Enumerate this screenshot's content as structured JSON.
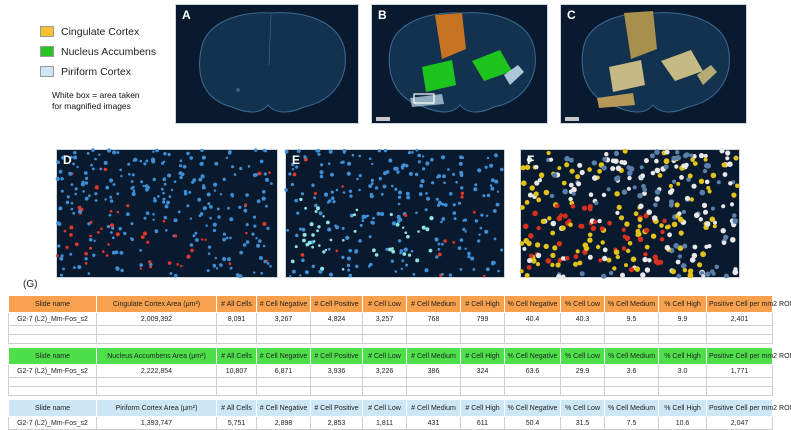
{
  "legend": {
    "items": [
      {
        "label": "Cingulate Cortex",
        "color": "#f5c12e"
      },
      {
        "label": "Nucleus Accumbens",
        "color": "#27c425"
      },
      {
        "label": "Piriform Cortex",
        "color": "#cfe6f5"
      }
    ],
    "note_line1": "White box = area taken",
    "note_line2": "for magnified images"
  },
  "panels": {
    "a": "A",
    "b": "B",
    "c": "C",
    "d": "D",
    "e": "E",
    "f": "F"
  },
  "section_g_label": "(G)",
  "tables": [
    {
      "header": [
        "Slide name",
        "Cingulate Cortex Area (μm²)",
        "# All Cells",
        "# Cell Negative",
        "# Cell Positive",
        "# Cell Low",
        "# Cell Medium",
        "# Cell High",
        "% Cell Negative",
        "% Cell Low",
        "% Cell Medium",
        "% Cell High",
        "Positive Cell per mm2 ROI"
      ],
      "row": [
        "G2-7 (L2)_Mm-Fos_s2",
        "2,009,392",
        "8,091",
        "3,267",
        "4,824",
        "3,257",
        "768",
        "799",
        "40.4",
        "40.3",
        "9.5",
        "9.9",
        "2,401"
      ]
    },
    {
      "header": [
        "Slide name",
        "Nucleus Accumbens Area (μm²)",
        "# All Cells",
        "# Cell Negative",
        "# Cell Positive",
        "# Cell Low",
        "# Cell Medium",
        "# Cell High",
        "% Cell Negative",
        "% Cell Low",
        "% Cell Medium",
        "% Cell High",
        "Positive Cell per mm2 ROI"
      ],
      "row": [
        "G2-7 (L2)_Mm-Fos_s2",
        "2,222,854",
        "10,807",
        "6,871",
        "3,936",
        "3,226",
        "386",
        "324",
        "63.6",
        "29.9",
        "3.6",
        "3.0",
        "1,771"
      ]
    },
    {
      "header": [
        "Slide name",
        "Piriform Cortex Area (μm²)",
        "# All Cells",
        "# Cell Negative",
        "# Cell Positive",
        "# Cell Low",
        "# Cell Medium",
        "# Cell High",
        "% Cell Negative",
        "% Cell Low",
        "% Cell Medium",
        "% Cell High",
        "Positive Cell per mm2 ROI"
      ],
      "row": [
        "G2-7 (L2)_Mm-Fos_s2",
        "1,393,747",
        "5,751",
        "2,898",
        "2,853",
        "1,811",
        "431",
        "611",
        "50.4",
        "31.5",
        "7.5",
        "10.6",
        "2,047"
      ]
    }
  ]
}
